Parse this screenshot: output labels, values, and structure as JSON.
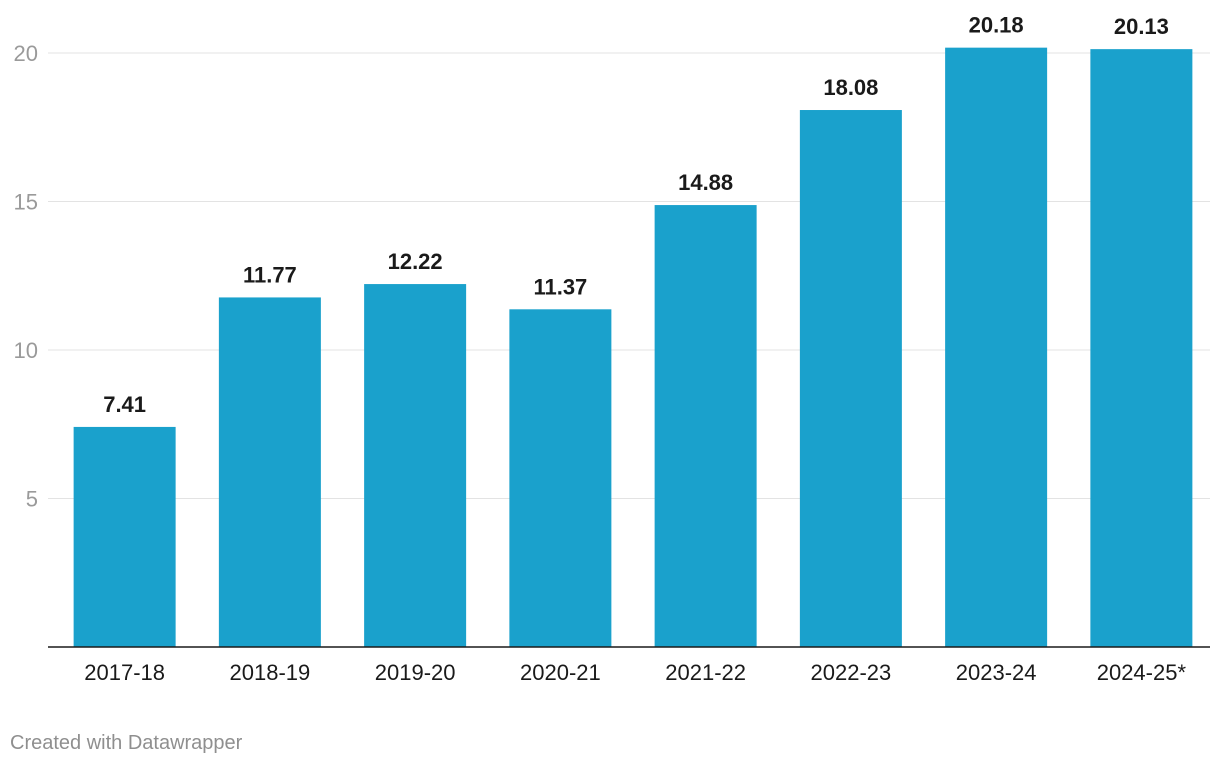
{
  "chart_data": {
    "type": "bar",
    "categories": [
      "2017-18",
      "2018-19",
      "2019-20",
      "2020-21",
      "2021-22",
      "2022-23",
      "2023-24",
      "2024-25*"
    ],
    "values": [
      7.41,
      11.77,
      12.22,
      11.37,
      14.88,
      18.08,
      20.18,
      20.13
    ],
    "data_labels": [
      "7.41",
      "11.77",
      "12.22",
      "11.37",
      "14.88",
      "18.08",
      "20.18",
      "20.13"
    ],
    "yticks": [
      5,
      10,
      15,
      20
    ],
    "ytick_labels": [
      "5",
      "10",
      "15",
      "20"
    ],
    "ylim": [
      0,
      20
    ],
    "grid": true,
    "bar_color": "#1aa1cc",
    "title": "",
    "xlabel": "",
    "ylabel": ""
  },
  "footer": {
    "credit": "Created with Datawrapper"
  }
}
